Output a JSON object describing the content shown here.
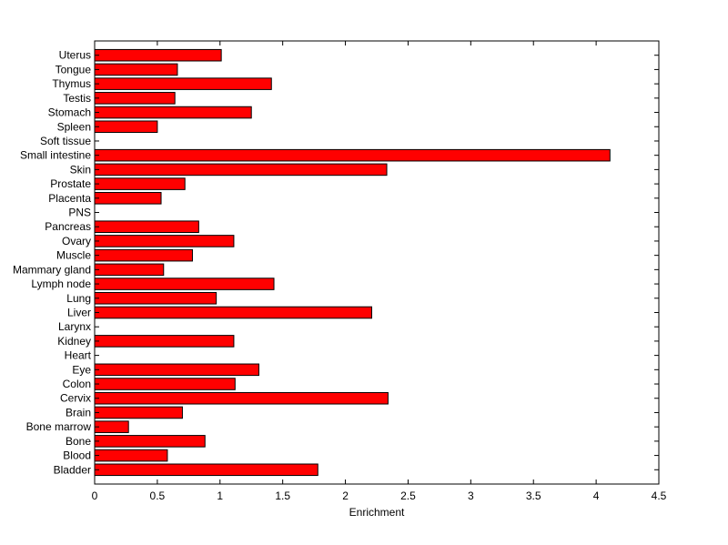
{
  "chart_data": {
    "type": "bar",
    "orientation": "horizontal",
    "title": "",
    "xlabel": "Enrichment",
    "ylabel": "",
    "xlim": [
      0,
      4.5
    ],
    "xticks": [
      0,
      0.5,
      1,
      1.5,
      2,
      2.5,
      3,
      3.5,
      4,
      4.5
    ],
    "xtick_labels": [
      "0",
      "0.5",
      "1",
      "1.5",
      "2",
      "2.5",
      "3",
      "3.5",
      "4",
      "4.5"
    ],
    "grid": false,
    "legend": "none",
    "bar_color": "#ff0000",
    "bar_edge_color": "#000000",
    "categories": [
      "Bladder",
      "Blood",
      "Bone",
      "Bone marrow",
      "Brain",
      "Cervix",
      "Colon",
      "Eye",
      "Heart",
      "Kidney",
      "Larynx",
      "Liver",
      "Lung",
      "Lymph node",
      "Mammary gland",
      "Muscle",
      "Ovary",
      "Pancreas",
      "PNS",
      "Placenta",
      "Prostate",
      "Skin",
      "Small intestine",
      "Soft tissue",
      "Spleen",
      "Stomach",
      "Testis",
      "Thymus",
      "Tongue",
      "Uterus"
    ],
    "values": [
      1.78,
      0.58,
      0.88,
      0.27,
      0.7,
      2.34,
      1.12,
      1.31,
      0,
      1.11,
      0,
      2.21,
      0.97,
      1.43,
      0.55,
      0.78,
      1.11,
      0.83,
      0,
      0.53,
      0.72,
      2.33,
      4.11,
      0,
      0.5,
      1.25,
      0.64,
      1.41,
      0.66,
      1.01
    ]
  }
}
